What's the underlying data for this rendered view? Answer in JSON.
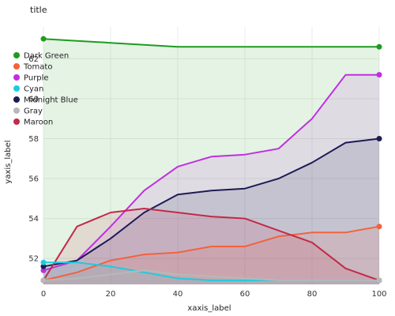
{
  "chart_data": {
    "type": "line",
    "title": "title",
    "xlabel": "xaxis_label",
    "ylabel": "yaxis_label",
    "x": [
      0,
      10,
      20,
      30,
      40,
      50,
      60,
      70,
      80,
      90,
      100
    ],
    "xlim": [
      0,
      100
    ],
    "ylim": [
      50.7,
      63.6
    ],
    "xticks": [
      0,
      20,
      40,
      60,
      80,
      100
    ],
    "yticks": [
      52,
      54,
      56,
      58,
      60,
      62
    ],
    "grid": true,
    "legend_position": "left",
    "series": [
      {
        "name": "Dark Green",
        "color": "#1f9b1f",
        "values": [
          63.0,
          62.9,
          62.8,
          62.7,
          62.6,
          62.6,
          62.6,
          62.6,
          62.6,
          62.6,
          62.6
        ]
      },
      {
        "name": "Purple",
        "color": "#c02fe0",
        "values": [
          51.4,
          51.9,
          53.6,
          55.4,
          56.6,
          57.1,
          57.2,
          57.5,
          59.0,
          61.2,
          61.2
        ]
      },
      {
        "name": "Midnight Blue",
        "color": "#1c1c55",
        "values": [
          51.6,
          51.9,
          53.0,
          54.3,
          55.2,
          55.4,
          55.5,
          56.0,
          56.8,
          57.8,
          58.0
        ]
      },
      {
        "name": "Tomato",
        "color": "#f2623e",
        "values": [
          50.9,
          51.3,
          51.9,
          52.2,
          52.3,
          52.6,
          52.6,
          53.1,
          53.3,
          53.3,
          53.6
        ]
      },
      {
        "name": "Maroon",
        "color": "#c22a48",
        "values": [
          50.9,
          53.6,
          54.3,
          54.5,
          54.3,
          54.1,
          54.0,
          53.4,
          52.8,
          51.5,
          50.9
        ]
      },
      {
        "name": "Cyan",
        "color": "#1ecbdd",
        "values": [
          51.8,
          51.8,
          51.6,
          51.3,
          51.0,
          50.9,
          50.9,
          50.9,
          50.9,
          50.9,
          50.9
        ]
      },
      {
        "name": "Gray",
        "color": "#b8b8b8",
        "values": [
          50.9,
          51.0,
          51.2,
          51.4,
          51.2,
          51.1,
          51.0,
          50.9,
          50.9,
          50.9,
          50.9
        ]
      }
    ],
    "legend": [
      "Dark Green",
      "Tomato",
      "Purple",
      "Cyan",
      "Midnight Blue",
      "Gray",
      "Maroon"
    ]
  }
}
